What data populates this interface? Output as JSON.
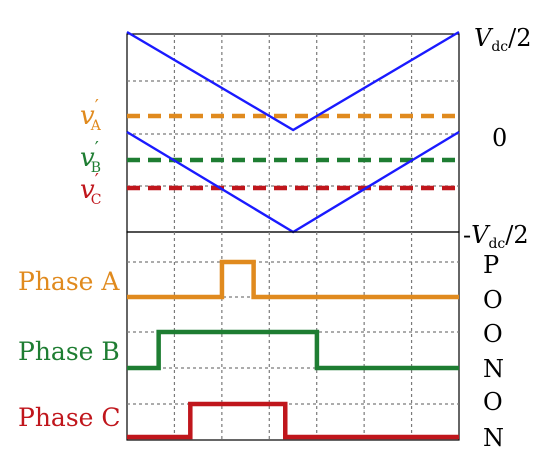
{
  "colors": {
    "carrier": "#1a1aff",
    "phase_a": "#e08a1e",
    "phase_b": "#1e7d32",
    "phase_c": "#c0161c",
    "grid": "#7a7a7a",
    "frame": "#000000"
  },
  "right_axis": {
    "top": {
      "sign": "",
      "v": "V",
      "sub": "dc",
      "tail": "/2"
    },
    "mid": "0",
    "bottom": {
      "sign": "-",
      "v": "V",
      "sub": "dc",
      "tail": "/2"
    }
  },
  "references": [
    {
      "key": "a",
      "v": "v",
      "prime": "′",
      "sub": "A",
      "level": 0.4
    },
    {
      "key": "b",
      "v": "v",
      "prime": "′",
      "sub": "B",
      "level": 0.1
    },
    {
      "key": "c",
      "v": "v",
      "prime": "′",
      "sub": "C",
      "level": -0.1
    }
  ],
  "phases": [
    {
      "key": "a",
      "label": "Phase A",
      "states": [
        "P",
        "O"
      ],
      "high_from": 0.3,
      "high_to": 0.4
    },
    {
      "key": "b",
      "label": "Phase B",
      "states": [
        "O",
        "N"
      ],
      "high_from": 0.1,
      "high_to": 0.6
    },
    {
      "key": "c",
      "label": "Phase C",
      "states": [
        "O",
        "N"
      ],
      "high_from": 0.2,
      "high_to": 0.5
    }
  ],
  "carrier": {
    "period_min_at": 0.35
  }
}
